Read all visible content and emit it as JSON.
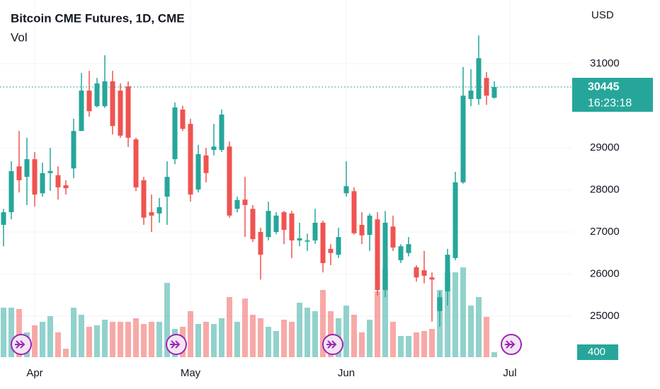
{
  "chart_data": {
    "type": "candlestick",
    "title": "Bitcoin CME Futures, 1D, CME",
    "volume_title": "Vol",
    "currency": "USD",
    "price_label": 30445,
    "countdown": "16:23:18",
    "volume_label": 400,
    "up_color": "#26a69a",
    "down_color": "#ef5350",
    "categories": [
      null,
      null,
      null,
      null,
      null,
      null,
      null,
      null,
      null,
      null,
      null,
      null,
      null,
      null,
      null,
      null,
      null,
      null,
      null,
      null,
      null,
      null,
      null,
      null,
      null,
      null,
      null,
      null,
      null,
      null,
      null,
      null,
      null,
      null,
      null,
      null,
      null,
      null,
      null,
      null,
      null,
      null,
      null,
      null,
      null,
      null,
      null,
      null,
      null,
      null,
      null,
      null,
      null,
      null,
      null,
      null,
      null,
      null,
      null,
      null,
      null,
      null,
      null,
      null
    ],
    "open": [
      27170,
      27470,
      28560,
      28310,
      28730,
      27920,
      28400,
      28350,
      28110,
      28510,
      29400,
      30360,
      29990,
      29990,
      30580,
      30360,
      30460,
      29200,
      28230,
      27470,
      27440,
      27840,
      28730,
      29910,
      29570,
      28010,
      28820,
      28950,
      28950,
      29030,
      27550,
      27770,
      27550,
      27000,
      26880,
      27000,
      27470,
      27440,
      26800,
      26770,
      26800,
      27220,
      26600,
      26460,
      27920,
      27970,
      27170,
      26930,
      27300,
      25620,
      27130,
      26330,
      26500,
      26160,
      26090,
      25920,
      25120,
      25590,
      26380,
      28180,
      30160,
      30160,
      30660,
      30190
    ],
    "high": [
      27550,
      28680,
      29400,
      29240,
      28900,
      28650,
      29000,
      28560,
      28230,
      29690,
      30780,
      30830,
      30660,
      31200,
      30830,
      30530,
      30580,
      29240,
      28310,
      27890,
      27810,
      28680,
      30080,
      30000,
      29690,
      29070,
      29000,
      29570,
      29910,
      29150,
      27840,
      28310,
      27640,
      27100,
      27720,
      27470,
      27500,
      27500,
      27220,
      26960,
      27550,
      27270,
      26710,
      27100,
      28680,
      28060,
      27470,
      27440,
      27470,
      27500,
      27390,
      26710,
      26880,
      26210,
      26550,
      26040,
      25590,
      26600,
      28430,
      30920,
      30870,
      31670,
      30800,
      30580
    ],
    "low": [
      26660,
      27300,
      27940,
      27640,
      27600,
      27840,
      27980,
      27770,
      27890,
      28280,
      29400,
      29740,
      29960,
      29950,
      29320,
      29240,
      29020,
      27970,
      27170,
      27000,
      27220,
      27170,
      28610,
      29400,
      27720,
      27940,
      28180,
      28820,
      28900,
      27340,
      27470,
      26880,
      26760,
      25870,
      26800,
      26950,
      26710,
      26380,
      26660,
      26550,
      26720,
      26040,
      26210,
      26380,
      27840,
      26940,
      26710,
      26550,
      25490,
      25450,
      26550,
      26260,
      26420,
      25820,
      25780,
      24870,
      24750,
      25250,
      26330,
      28150,
      29990,
      30020,
      30020,
      30170
    ],
    "close": [
      27470,
      28445,
      28230,
      28730,
      27890,
      28400,
      28450,
      28060,
      28040,
      29400,
      30360,
      29870,
      30530,
      30580,
      29520,
      29290,
      29240,
      28060,
      27340,
      27390,
      27590,
      28310,
      29960,
      29450,
      27890,
      28850,
      28400,
      29030,
      29790,
      27390,
      27760,
      27640,
      26830,
      26460,
      27500,
      27390,
      27050,
      26800,
      26850,
      26800,
      27220,
      26260,
      26500,
      26880,
      28090,
      26970,
      26920,
      27390,
      25620,
      27220,
      26630,
      26660,
      26710,
      25920,
      25960,
      25870,
      25450,
      26460,
      28180,
      30240,
      30360,
      31130,
      30240,
      30445
    ],
    "volume": [
      3990,
      3990,
      3880,
      2000,
      2570,
      2850,
      3310,
      2000,
      680,
      3990,
      3420,
      2450,
      2570,
      3020,
      2850,
      2850,
      2850,
      3140,
      2680,
      2850,
      2850,
      5990,
      2280,
      2450,
      3710,
      2680,
      2850,
      2680,
      3140,
      4850,
      2850,
      4730,
      3420,
      3140,
      2450,
      2110,
      3020,
      2850,
      4390,
      3990,
      3710,
      5420,
      3710,
      3140,
      4160,
      3420,
      2000,
      3020,
      5300,
      7130,
      2850,
      1710,
      1710,
      2000,
      2110,
      2280,
      5420,
      6840,
      6840,
      7240,
      4160,
      4850,
      3250,
      400
    ],
    "ylim": [
      24025,
      32513
    ],
    "yticks": [
      25000,
      26000,
      27000,
      28000,
      29000,
      31000
    ],
    "y2lim": [
      0,
      28800
    ],
    "xticks": [
      {
        "value": 4,
        "label": "Apr"
      },
      {
        "value": 24,
        "label": "May"
      },
      {
        "value": 44,
        "label": "Jun"
      },
      {
        "value": 65,
        "label": "Jul"
      }
    ],
    "grid": true
  }
}
